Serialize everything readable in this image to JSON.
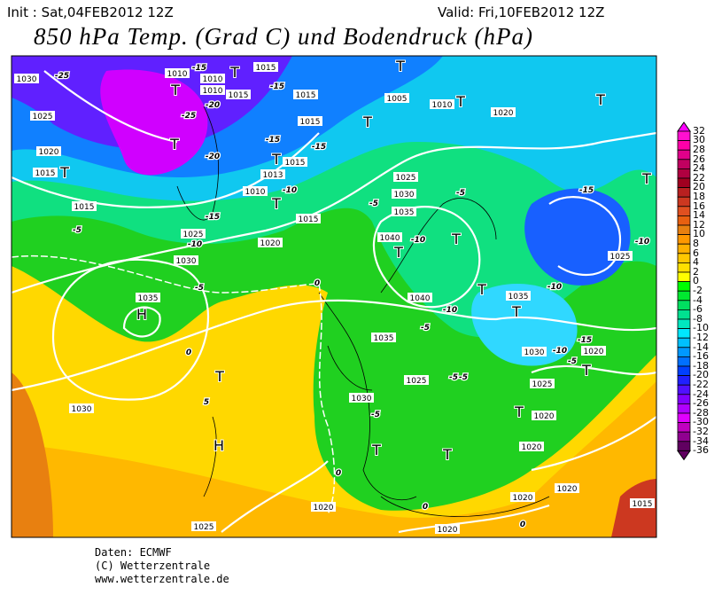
{
  "header": {
    "init": "Init : Sat,04FEB2012 12Z",
    "valid": "Valid: Fri,10FEB2012 12Z",
    "title": "850 hPa Temp. (Grad C) und Bodendruck (hPa)"
  },
  "footer": {
    "source": "Daten: ECMWF",
    "copyright": "(C) Wetterzentrale",
    "url": "www.wetterzentrale.de"
  },
  "colorbar": {
    "unit": "Grad C",
    "levels": [
      "32",
      "30",
      "28",
      "26",
      "24",
      "22",
      "20",
      "18",
      "16",
      "14",
      "12",
      "10",
      "8",
      "6",
      "4",
      "2",
      "0",
      "-2",
      "-4",
      "-6",
      "-8",
      "-10",
      "-12",
      "-14",
      "-16",
      "-18",
      "-20",
      "-22",
      "-24",
      "-26",
      "-28",
      "-30",
      "-32",
      "-34",
      "-36"
    ],
    "colors": [
      "#ff00ff",
      "#ff10d0",
      "#ff00a8",
      "#e0008a",
      "#c00060",
      "#b00040",
      "#a00020",
      "#b82020",
      "#cc3820",
      "#e05020",
      "#e86010",
      "#e88010",
      "#ff9800",
      "#ffb000",
      "#ffc800",
      "#ffe000",
      "#ffff00",
      "#00ff00",
      "#00e830",
      "#00e060",
      "#00e090",
      "#00e8c0",
      "#00e8ff",
      "#00c0ff",
      "#0098ff",
      "#0070ff",
      "#0040ff",
      "#2020ff",
      "#5010ff",
      "#8000ff",
      "#b000ff",
      "#e000ff",
      "#c000c0",
      "#900090",
      "#600060"
    ]
  },
  "map_labels": {
    "pressure": [
      "1030",
      "1025",
      "1020",
      "1015",
      "1015",
      "1010",
      "1010",
      "1010",
      "1015",
      "1015",
      "1015",
      "1015",
      "1013",
      "1015",
      "1010",
      "1015",
      "1020",
      "1025",
      "1030",
      "1035",
      "1005",
      "1010",
      "1020",
      "1025",
      "1030",
      "1035",
      "1040",
      "1040",
      "1035",
      "1035",
      "1030",
      "1025",
      "1030",
      "1025",
      "1020",
      "1020",
      "1020",
      "1020",
      "1025",
      "1020",
      "1015",
      "1030",
      "1025",
      "1020",
      "1020"
    ],
    "temperature": [
      "-25",
      "-15",
      "-25",
      "-20",
      "-20",
      "-15",
      "-15",
      "-15",
      "-10",
      "-15",
      "-5",
      "-10",
      "-5",
      "-5",
      "-5",
      "-10",
      "-10",
      "0",
      "-5",
      "0",
      "0",
      "-10",
      "-5",
      "-15",
      "-15",
      "-10",
      "-10",
      "-5",
      "-5",
      "5",
      "0",
      "0",
      "-5"
    ],
    "centers": [
      "T",
      "T",
      "T",
      "T",
      "T",
      "T",
      "T",
      "T",
      "T",
      "T",
      "T",
      "T",
      "T",
      "T",
      "T",
      "T",
      "T",
      "H",
      "H",
      "T",
      "T",
      "T"
    ]
  }
}
